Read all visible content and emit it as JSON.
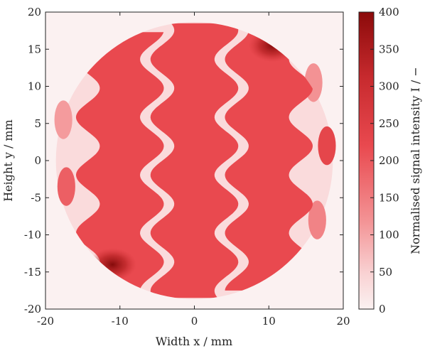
{
  "chart_data": {
    "type": "heatmap",
    "title": "",
    "xlabel": "Width x / mm",
    "ylabel": "Height y / mm",
    "colorbar_label": "Normalised signal intensity I / −",
    "xlim": [
      -20,
      20
    ],
    "ylim": [
      -20,
      20
    ],
    "clim": [
      0,
      400
    ],
    "x_ticks": [
      -20,
      -10,
      0,
      10,
      20
    ],
    "x_tick_labels": [
      "-20",
      "-10",
      "0",
      "10",
      "20"
    ],
    "y_ticks": [
      20,
      15,
      10,
      5,
      0,
      -5,
      -10,
      -15,
      -20
    ],
    "y_tick_labels": [
      "20",
      "15",
      "10",
      "5",
      "0",
      "-5",
      "-10",
      "-15",
      "-20"
    ],
    "colorbar_ticks": [
      400,
      350,
      300,
      250,
      200,
      150,
      100,
      50,
      0
    ],
    "colorbar_tick_labels": [
      "400",
      "350",
      "300",
      "250",
      "200",
      "150",
      "100",
      "50",
      "0"
    ],
    "colormap": {
      "low": "#fbf1f1",
      "mid": "#e9494f",
      "high": "#8b0a0a"
    },
    "background_intensity": 20,
    "disc": {
      "center_x": 0,
      "center_y": 0,
      "radius": 18.6,
      "intensity": 35
    },
    "serpentine_channels": [
      {
        "center_x": -10,
        "width": 8.6,
        "amplitude": 1.6,
        "period": 7.8,
        "y_min": -17.5,
        "y_max": 17.3,
        "intensity": 220
      },
      {
        "center_x": 0,
        "width": 8.6,
        "amplitude": 1.6,
        "period": 7.8,
        "y_min": -18.5,
        "y_max": 18.5,
        "intensity": 220
      },
      {
        "center_x": 10,
        "width": 8.6,
        "amplitude": 1.6,
        "period": 7.8,
        "y_min": -17.5,
        "y_max": 17.3,
        "intensity": 220
      }
    ],
    "edge_fragments": [
      {
        "x": -17.6,
        "y": 5.5,
        "intensity": 110
      },
      {
        "x": -17.2,
        "y": -3.5,
        "intensity": 190
      },
      {
        "x": 17.8,
        "y": 2.0,
        "intensity": 230
      },
      {
        "x": 16.0,
        "y": 10.5,
        "intensity": 120
      },
      {
        "x": 16.5,
        "y": -8.0,
        "intensity": 140
      }
    ],
    "hotspots": [
      {
        "x": -11,
        "y": -14,
        "intensity": 370
      },
      {
        "x": 10.5,
        "y": 15.5,
        "intensity": 330
      }
    ]
  }
}
